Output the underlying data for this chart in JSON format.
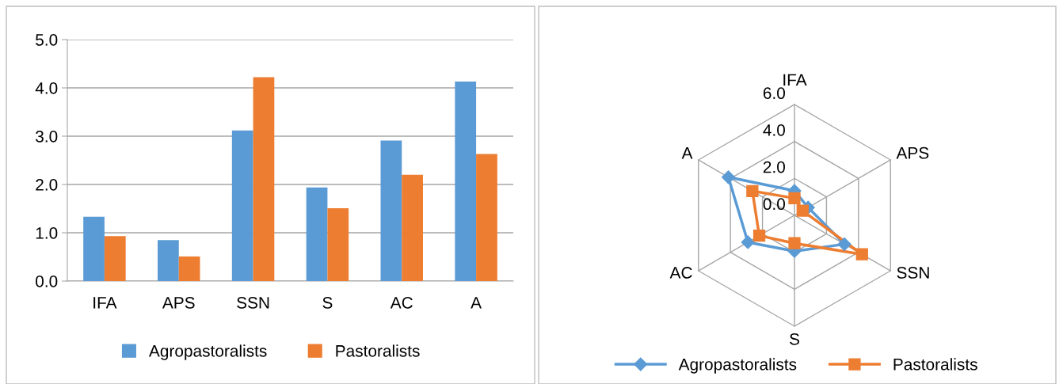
{
  "chart_data": [
    {
      "type": "bar",
      "categories": [
        "IFA",
        "APS",
        "SSN",
        "S",
        "AC",
        "A"
      ],
      "series": [
        {
          "name": "Agropastoralists",
          "color": "#5b9bd5",
          "values": [
            1.33,
            0.85,
            3.12,
            1.94,
            2.91,
            4.13
          ]
        },
        {
          "name": "Pastoralists",
          "color": "#ed7d31",
          "values": [
            0.93,
            0.51,
            4.22,
            1.51,
            2.2,
            2.63
          ]
        }
      ],
      "ylim": [
        0,
        5
      ],
      "yticks": [
        {
          "value": 0,
          "label": "0.0"
        },
        {
          "value": 1,
          "label": "1.0"
        },
        {
          "value": 2,
          "label": "2.0"
        },
        {
          "value": 3,
          "label": "3.0"
        },
        {
          "value": 4,
          "label": "4.0"
        },
        {
          "value": 5,
          "label": "5.0"
        }
      ],
      "grid": "y",
      "legend": "bottom"
    },
    {
      "type": "radar",
      "categories": [
        "IFA",
        "APS",
        "SSN",
        "S",
        "AC",
        "A"
      ],
      "series": [
        {
          "name": "Agropastoralists",
          "color": "#5b9bd5",
          "marker": "diamond",
          "values": [
            1.33,
            0.85,
            3.12,
            1.94,
            2.91,
            4.13
          ]
        },
        {
          "name": "Pastoralists",
          "color": "#ed7d31",
          "marker": "square",
          "values": [
            0.93,
            0.51,
            4.22,
            1.51,
            2.2,
            2.63
          ]
        }
      ],
      "ylim": [
        0,
        6
      ],
      "yticks": [
        {
          "value": 0,
          "label": "0.0"
        },
        {
          "value": 2,
          "label": "2.0"
        },
        {
          "value": 4,
          "label": "4.0"
        },
        {
          "value": 6,
          "label": "6.0"
        }
      ],
      "grid": true,
      "legend": "bottom"
    }
  ]
}
